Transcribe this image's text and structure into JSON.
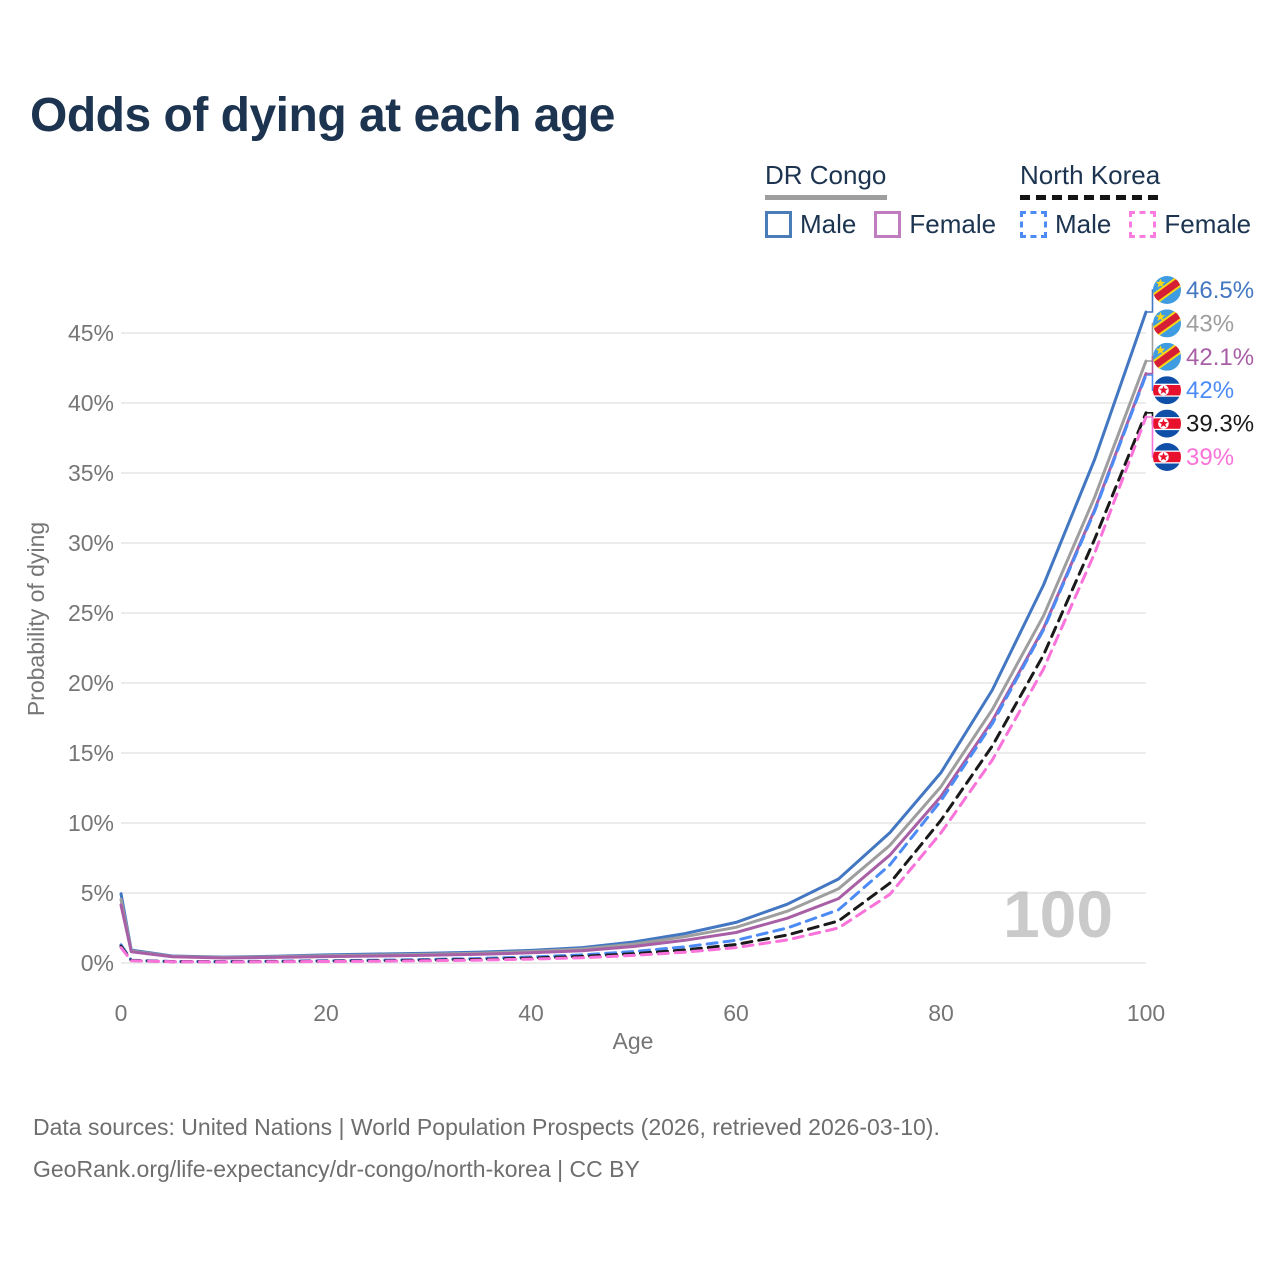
{
  "header": {
    "title": "Odds of dying at each age"
  },
  "legend": {
    "groups": [
      {
        "country": "DR Congo",
        "line_style": "solid",
        "underline_color": "#9e9e9e",
        "items": [
          {
            "label": "Male",
            "color": "#4a7db8"
          },
          {
            "label": "Female",
            "color": "#c07ec0"
          }
        ]
      },
      {
        "country": "North Korea",
        "line_style": "dashed",
        "underline_color": "#141414",
        "items": [
          {
            "label": "Male",
            "color": "#4c8bf5"
          },
          {
            "label": "Female",
            "color": "#fa7ce0"
          }
        ]
      }
    ]
  },
  "chart_data": {
    "type": "line",
    "title": "Odds of dying at each age",
    "xlabel": "Age",
    "ylabel": "Probability of dying",
    "xlim": [
      0,
      100
    ],
    "ylim": [
      0,
      48
    ],
    "grid": "horizontal",
    "x_tick_values": [
      0,
      20,
      40,
      60,
      80,
      100
    ],
    "x_tick_labels": [
      "0",
      "20",
      "40",
      "60",
      "80",
      "100"
    ],
    "y_tick_values": [
      0,
      5,
      10,
      15,
      20,
      25,
      30,
      35,
      40,
      45
    ],
    "y_tick_labels": [
      "0%",
      "5%",
      "10%",
      "15%",
      "20%",
      "25%",
      "30%",
      "35%",
      "40%",
      "45%"
    ],
    "watermark": "100",
    "grid_color": "#ececec",
    "axis_text_color": "#767676",
    "watermark_color": "#bdbdbd",
    "ages": [
      0,
      1,
      5,
      10,
      15,
      20,
      25,
      30,
      35,
      40,
      45,
      50,
      55,
      60,
      65,
      70,
      75,
      80,
      85,
      90,
      95,
      100
    ],
    "series": [
      {
        "name": "DR Congo Male",
        "slug": "dr-congo-male",
        "country": "DR Congo",
        "sex": "Male",
        "line_style": "solid",
        "color": "#4377c2",
        "flag": "cd",
        "end_label": "46.5%",
        "values": [
          4.95,
          0.92,
          0.5,
          0.42,
          0.48,
          0.58,
          0.64,
          0.7,
          0.78,
          0.9,
          1.1,
          1.5,
          2.1,
          2.9,
          4.2,
          6.0,
          9.3,
          13.6,
          19.5,
          27.0,
          36.0,
          46.5
        ]
      },
      {
        "name": "DR Congo Both sexes",
        "slug": "dr-congo-both",
        "country": "DR Congo",
        "sex": "Both",
        "line_style": "solid",
        "color": "#9e9e9e",
        "flag": "cd",
        "end_label": "43%",
        "values": [
          4.55,
          0.86,
          0.47,
          0.39,
          0.44,
          0.52,
          0.57,
          0.62,
          0.7,
          0.82,
          1.0,
          1.35,
          1.88,
          2.55,
          3.7,
          5.3,
          8.4,
          12.6,
          18.1,
          24.8,
          33.3,
          43.0
        ]
      },
      {
        "name": "DR Congo Female",
        "slug": "dr-congo-female",
        "country": "DR Congo",
        "sex": "Female",
        "line_style": "solid",
        "color": "#a85fa6",
        "flag": "cd",
        "end_label": "42.1%",
        "values": [
          4.15,
          0.8,
          0.44,
          0.36,
          0.4,
          0.46,
          0.5,
          0.55,
          0.62,
          0.73,
          0.88,
          1.18,
          1.62,
          2.18,
          3.2,
          4.6,
          7.7,
          11.9,
          17.3,
          23.9,
          32.4,
          42.1
        ]
      },
      {
        "name": "North Korea Male",
        "slug": "north-korea-male",
        "country": "North Korea",
        "sex": "Male",
        "line_style": "dashed",
        "color": "#4c8bf5",
        "flag": "kp",
        "end_label": "42%",
        "values": [
          1.3,
          0.2,
          0.11,
          0.1,
          0.13,
          0.16,
          0.2,
          0.25,
          0.32,
          0.43,
          0.58,
          0.82,
          1.15,
          1.62,
          2.5,
          3.8,
          7.0,
          11.6,
          17.1,
          23.8,
          32.3,
          42.0
        ]
      },
      {
        "name": "North Korea Both sexes",
        "slug": "north-korea-both",
        "country": "North Korea",
        "sex": "Both",
        "line_style": "dashed",
        "color": "#1a1a1a",
        "flag": "kp",
        "end_label": "39.3%",
        "values": [
          1.2,
          0.18,
          0.1,
          0.09,
          0.11,
          0.13,
          0.16,
          0.2,
          0.26,
          0.35,
          0.47,
          0.66,
          0.93,
          1.32,
          2.0,
          3.0,
          5.7,
          10.2,
          15.5,
          22.0,
          30.3,
          39.3
        ]
      },
      {
        "name": "North Korea Female",
        "slug": "north-korea-female",
        "country": "North Korea",
        "sex": "Female",
        "line_style": "dashed",
        "color": "#f973da",
        "flag": "kp",
        "end_label": "39%",
        "values": [
          1.1,
          0.16,
          0.09,
          0.08,
          0.09,
          0.11,
          0.13,
          0.16,
          0.21,
          0.28,
          0.38,
          0.54,
          0.77,
          1.1,
          1.65,
          2.5,
          4.9,
          9.3,
          14.5,
          21.0,
          29.3,
          39.0
        ]
      }
    ]
  },
  "footer": {
    "line1": "Data sources: United Nations | World Population Prospects (2026, retrieved 2026-03-10).",
    "line2": "GeoRank.org/life-expectancy/dr-congo/north-korea | CC BY"
  }
}
